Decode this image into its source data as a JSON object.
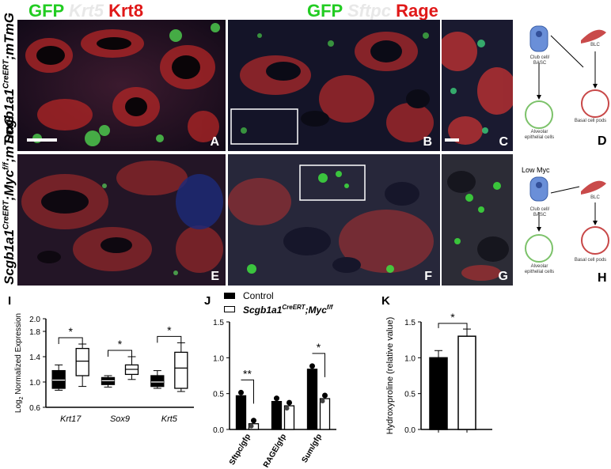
{
  "header_left": {
    "gfp": "GFP",
    "krt5": "Krt5",
    "krt8": "Krt8"
  },
  "header_right": {
    "gfp": "GFP",
    "sftpc": "Sftpc",
    "rage": "Rage"
  },
  "row_labels": {
    "top": {
      "gene": "Scgb1a1",
      "sup": "CreERT",
      "rest": ";mTmG"
    },
    "bottom": {
      "gene": "Scgb1a1",
      "sup": "CreERT",
      "mid": ";Myc",
      "sup2": "f/f",
      "rest": ";mTmG"
    }
  },
  "panel_letters": [
    "A",
    "B",
    "C",
    "D",
    "E",
    "F",
    "G",
    "H",
    "I",
    "J",
    "K"
  ],
  "diagram_d": {
    "club": "Club cell/\nBASC",
    "blc": "BLC",
    "alveolar": "Alveolar\nepithelial cells",
    "basal": "Basal cell pods"
  },
  "diagram_h": {
    "title": "Low Myc",
    "club": "Club cell/\nBASC",
    "blc": "BLC",
    "alveolar": "Alveolar\nepithelial cells",
    "basal": "Basal cell pods"
  },
  "colors": {
    "green": "#22cc22",
    "red": "#e01818",
    "black": "#000000"
  },
  "chart_data": [
    {
      "panel": "I",
      "type": "box",
      "ylabel": "Log2 Normalized Expression",
      "ylim": [
        0.6,
        2.0
      ],
      "yticks": [
        "0.6",
        "1.0",
        "1.4",
        "1.8",
        "2.0"
      ],
      "categories": [
        "Krt17",
        "Sox9",
        "Krt5"
      ],
      "series": [
        {
          "name": "Control",
          "boxes": [
            {
              "min": 0.87,
              "q1": 0.9,
              "median": 1.03,
              "q3": 1.18,
              "max": 1.27
            },
            {
              "min": 0.92,
              "q1": 0.96,
              "median": 1.02,
              "q3": 1.07,
              "max": 1.1
            },
            {
              "min": 0.9,
              "q1": 0.93,
              "median": 1.0,
              "q3": 1.1,
              "max": 1.18
            }
          ]
        },
        {
          "name": "Scgb1a1CreERT;Mycf/f",
          "boxes": [
            {
              "min": 0.93,
              "q1": 1.1,
              "median": 1.33,
              "q3": 1.53,
              "max": 1.6
            },
            {
              "min": 1.04,
              "q1": 1.12,
              "median": 1.2,
              "q3": 1.27,
              "max": 1.4
            },
            {
              "min": 0.85,
              "q1": 0.9,
              "median": 1.22,
              "q3": 1.47,
              "max": 1.62
            }
          ]
        }
      ],
      "significance": [
        "*",
        "*",
        "*"
      ]
    },
    {
      "panel": "J",
      "type": "bar",
      "ylim": [
        0,
        1.5
      ],
      "yticks": [
        "0.0",
        "0.5",
        "1.0",
        "1.5"
      ],
      "categories": [
        "Sftpc/gfp",
        "RAGE/gfp",
        "Sum/gfp"
      ],
      "series": [
        {
          "name": "Control",
          "values": [
            0.47,
            0.39,
            0.84
          ]
        },
        {
          "name": "Scgb1a1CreERT;Mycf/f",
          "values": [
            0.08,
            0.33,
            0.43
          ]
        }
      ],
      "significance": [
        "**",
        "",
        "*"
      ]
    },
    {
      "panel": "K",
      "type": "bar",
      "ylabel": "Hydroxyproline (relative value)",
      "ylim": [
        0,
        1.5
      ],
      "yticks": [
        "0.0",
        "0.5",
        "1.0",
        "1.5"
      ],
      "series": [
        {
          "name": "Control",
          "values": [
            1.0
          ]
        },
        {
          "name": "Scgb1a1CreERT;Mycf/f",
          "values": [
            1.3
          ]
        }
      ],
      "significance": [
        "*"
      ]
    }
  ],
  "legend": {
    "control": "Control",
    "mutant_gene": "Scgb1a1",
    "mutant_sup": "CreERT",
    "mutant_mid": ";Myc",
    "mutant_sup2": "f/f"
  }
}
